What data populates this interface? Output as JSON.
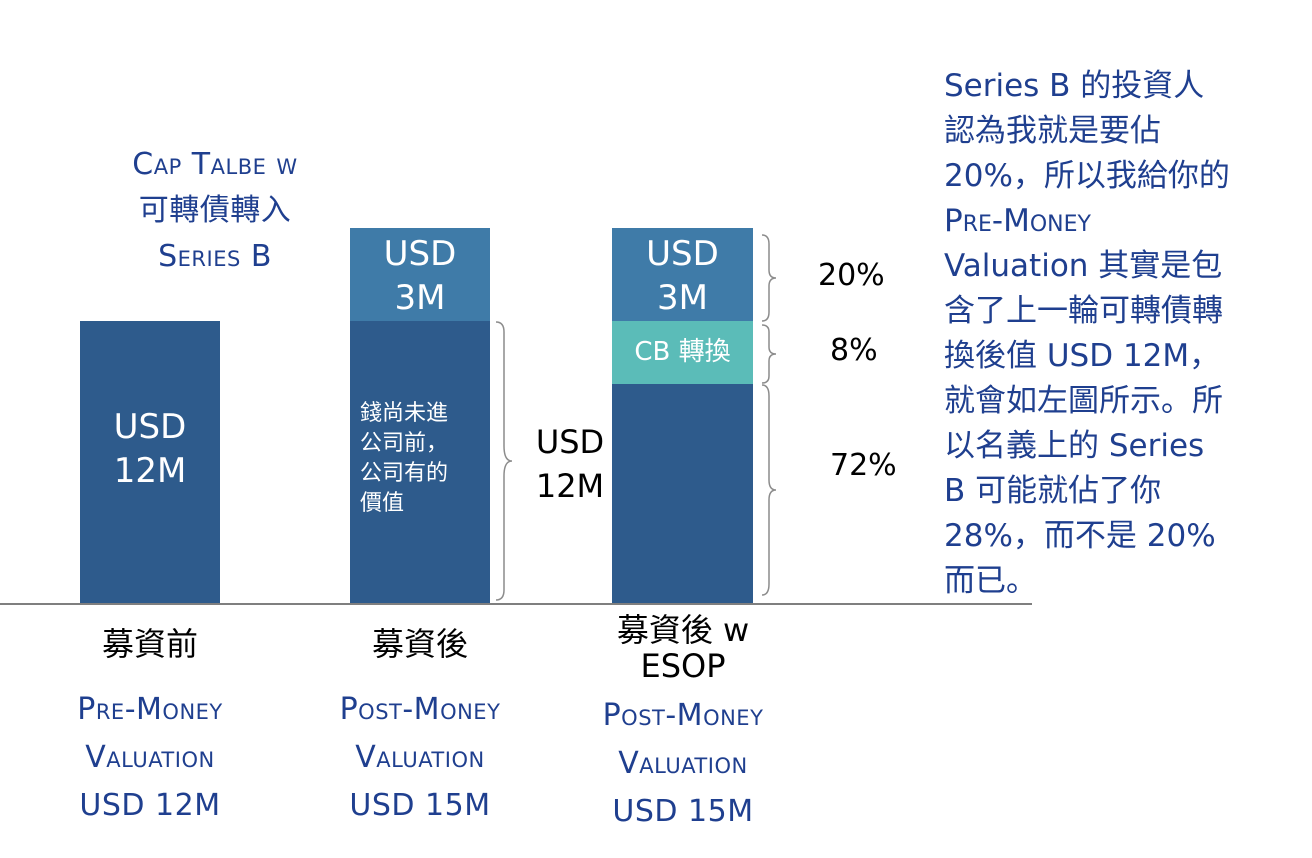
{
  "title": {
    "line1": "Cap Talbe w",
    "line2": "可轉債轉入",
    "line3": "Series B"
  },
  "bars": {
    "pre": {
      "label_line1": "USD",
      "label_line2": "12M"
    },
    "post": {
      "top_line1": "USD",
      "top_line2": "3M",
      "bottom_lines": [
        "錢尚未進",
        "公司前，",
        "公司有的",
        "價值"
      ]
    },
    "post_esop": {
      "top_line1": "USD",
      "top_line2": "3M",
      "cb_label": "CB 轉換"
    }
  },
  "brace_label": {
    "line1": "USD",
    "line2": "12M"
  },
  "percentages": {
    "p20": "20%",
    "p8": "8%",
    "p72": "72%"
  },
  "categories": {
    "pre": "募資前",
    "post": "募資後",
    "post_esop_line1": "募資後 w",
    "post_esop_line2": "ESOP"
  },
  "valuations": {
    "pre": {
      "line1": "Pre-Money",
      "line2": "Valuation",
      "line3": "USD 12M"
    },
    "post": {
      "line1": "Post-Money",
      "line2": "Valuation",
      "line3": "USD 15M"
    },
    "post_esop": {
      "line1": "Post-Money",
      "line2": "Valuation",
      "line3": "USD 15M"
    }
  },
  "note": {
    "lines": [
      "Series B 的投資人",
      "認為我就是要佔",
      "20%，所以我給你的",
      "Pre-Money",
      "Valuation 其實是包",
      "含了上一輪可轉債轉",
      "換後值 USD 12M，",
      "就會如左圖所示。所",
      "以名義上的 Series",
      "B 可能就佔了你",
      "28%，而不是 20%",
      "而已。"
    ]
  },
  "colors": {
    "dark_blue": "#2e5b8c",
    "mid_blue": "#3f7ba8",
    "teal": "#5bbcb8",
    "text_blue": "#1f3f8f"
  }
}
